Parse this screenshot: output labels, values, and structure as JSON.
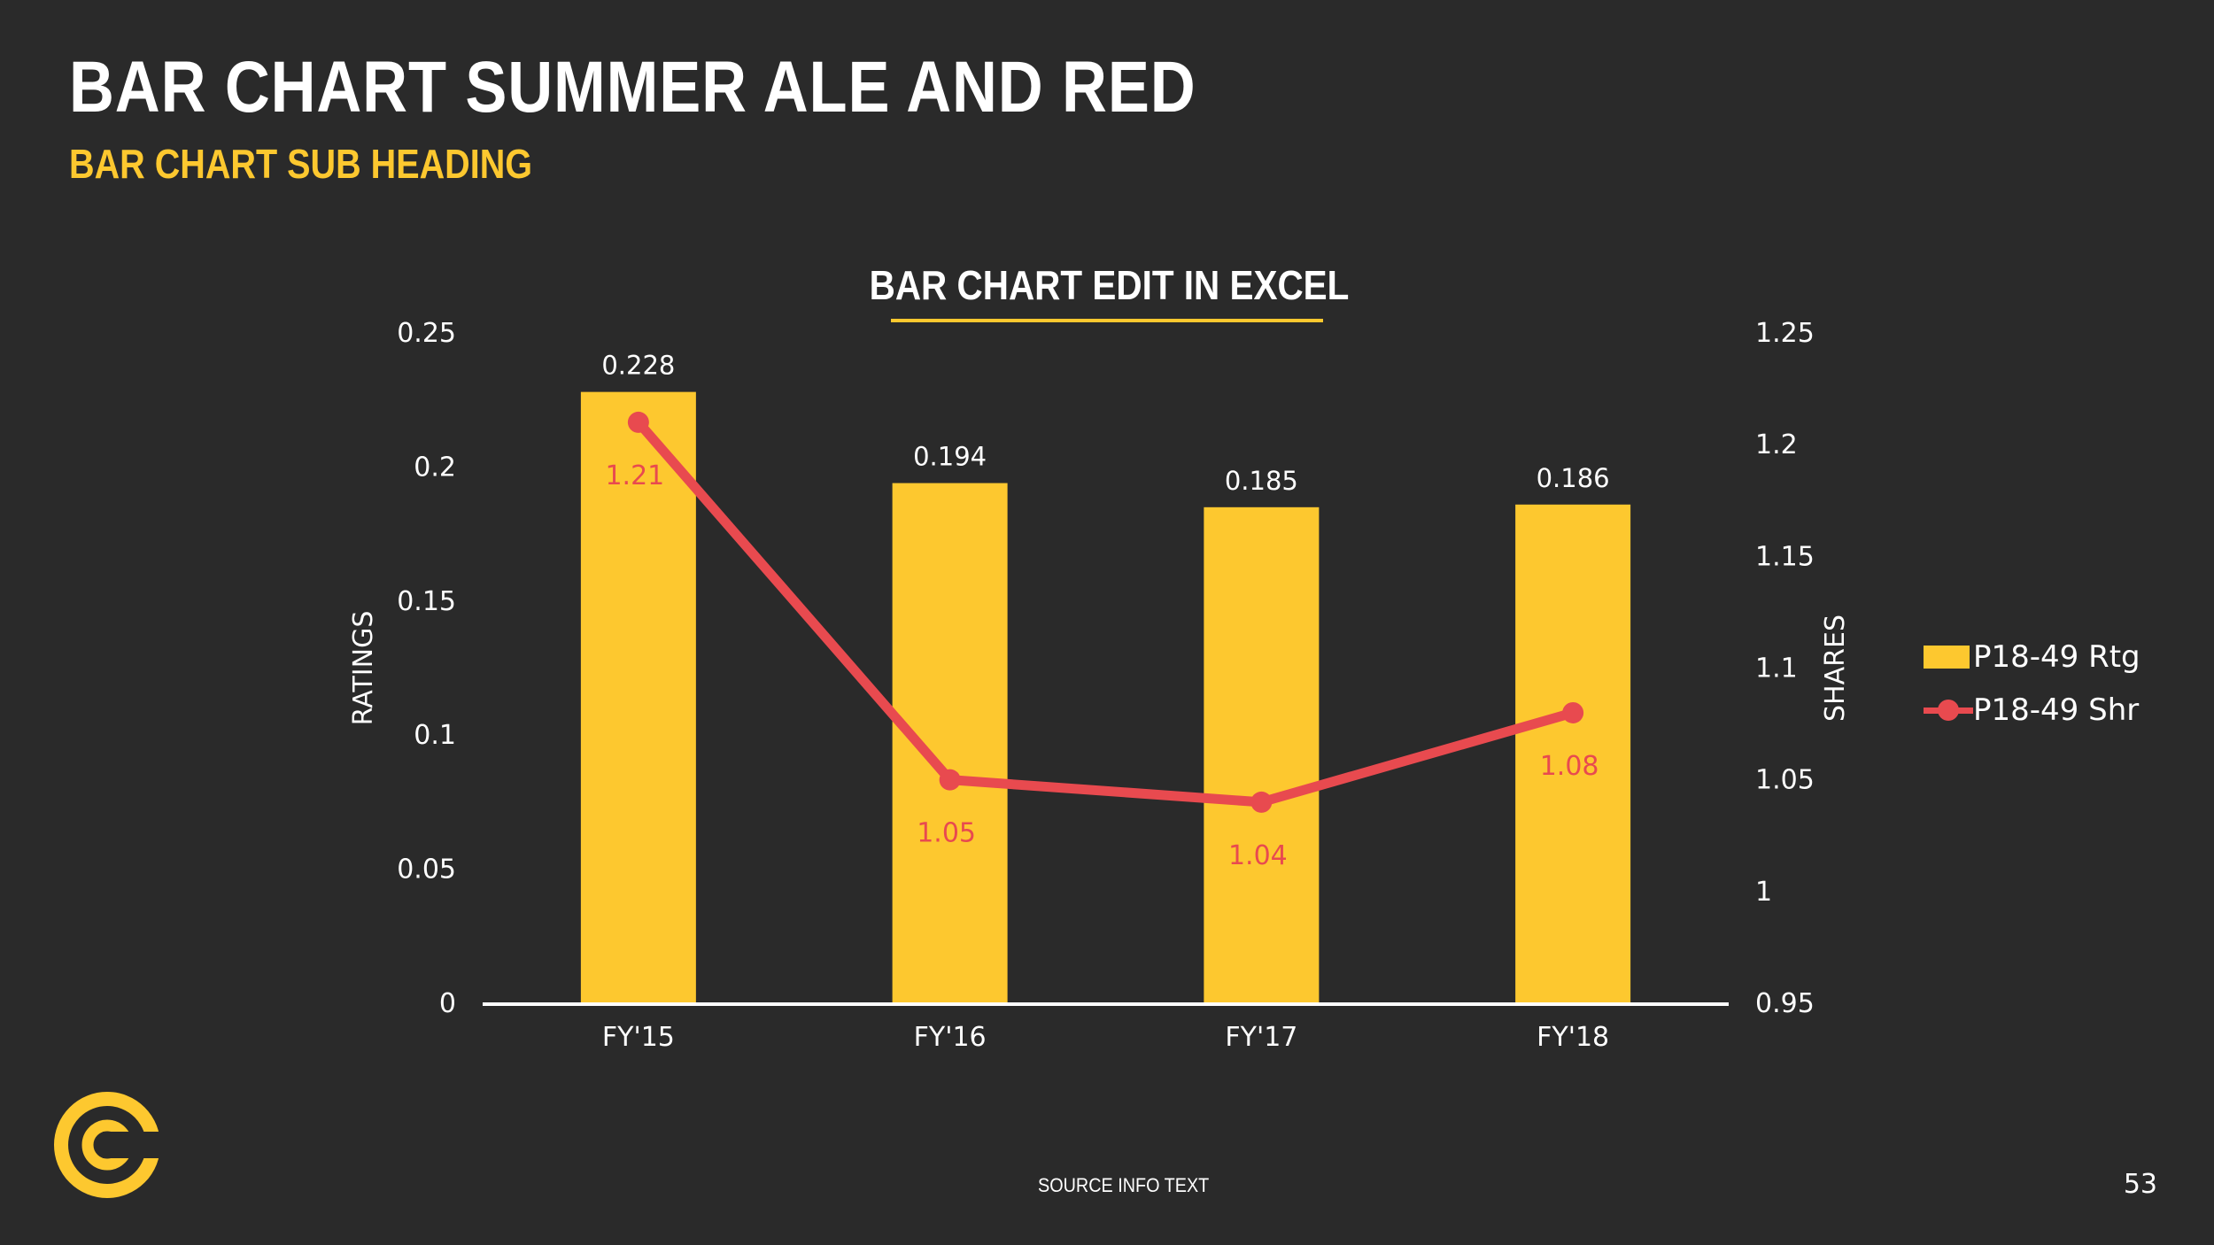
{
  "slide": {
    "title": "BAR CHART SUMMER ALE AND RED",
    "subtitle": "BAR CHART SUB HEADING",
    "source": "SOURCE INFO TEXT",
    "page_number": "53"
  },
  "colors": {
    "background": "#2a2a2a",
    "accent_yellow": "#fdc82f",
    "line_red": "#e84a4f",
    "text_white": "#ffffff"
  },
  "chart_data": {
    "type": "bar",
    "title": "BAR CHART EDIT IN EXCEL",
    "categories": [
      "FY'15",
      "FY'16",
      "FY'17",
      "FY'18"
    ],
    "series": [
      {
        "name": "P18-49 Rtg",
        "type": "bar",
        "axis": "left",
        "values": [
          0.228,
          0.194,
          0.185,
          0.186
        ],
        "labels": [
          "0.228",
          "0.194",
          "0.185",
          "0.186"
        ]
      },
      {
        "name": "P18-49 Shr",
        "type": "line",
        "axis": "right",
        "values": [
          1.21,
          1.05,
          1.04,
          1.08
        ],
        "labels": [
          "1.21",
          "1.05",
          "1.04",
          "1.08"
        ]
      }
    ],
    "ylabel": "RATINGS",
    "y2label": "SHARES",
    "ylim": [
      0,
      0.25
    ],
    "y2lim": [
      0.95,
      1.25
    ],
    "yticks": [
      "0",
      "0.05",
      "0.1",
      "0.15",
      "0.2",
      "0.25"
    ],
    "y2ticks": [
      "0.95",
      "1",
      "1.05",
      "1.1",
      "1.15",
      "1.2",
      "1.25"
    ],
    "grid": false,
    "legend_position": "right"
  }
}
